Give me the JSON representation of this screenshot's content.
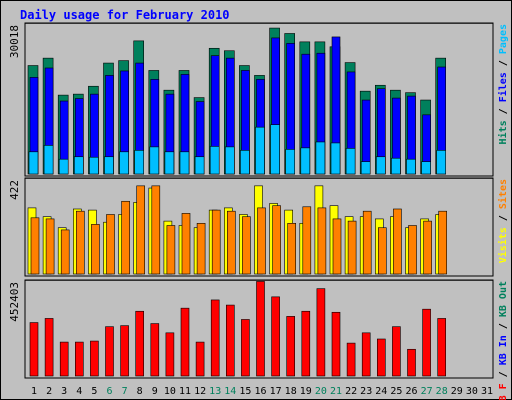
{
  "chart_data": {
    "type": "bar",
    "title": "Daily usage for February 2010",
    "days": [
      "1",
      "2",
      "3",
      "4",
      "5",
      "6",
      "7",
      "8",
      "9",
      "10",
      "11",
      "12",
      "13",
      "14",
      "15",
      "16",
      "17",
      "18",
      "19",
      "20",
      "21",
      "22",
      "23",
      "24",
      "25",
      "26",
      "27",
      "28",
      "29",
      "30",
      "31"
    ],
    "weekend_days": [
      "6",
      "7",
      "13",
      "14",
      "20",
      "21",
      "27",
      "28"
    ],
    "panels": [
      {
        "id": "top",
        "max_label": "30018",
        "ylim": [
          0,
          30018
        ],
        "right_label": [
          {
            "text": "Hits",
            "color": "#00805c"
          },
          {
            "text": " / ",
            "color": "#000000"
          },
          {
            "text": "Files",
            "color": "#0000ff"
          },
          {
            "text": " / ",
            "color": "#000000"
          },
          {
            "text": "Pages",
            "color": "#00bfff"
          }
        ],
        "series": [
          {
            "name": "Hits",
            "color": "#00805c",
            "values": [
              22000,
              23500,
              16000,
              16200,
              17800,
              22500,
              23000,
              27000,
              21000,
              17000,
              21000,
              15500,
              25500,
              25000,
              22000,
              20000,
              29600,
              28500,
              26800,
              26800,
              25800,
              22600,
              16800,
              18000,
              17000,
              16500,
              15000,
              23500,
              null,
              null,
              null
            ]
          },
          {
            "name": "Files",
            "color": "#0000ff",
            "values": [
              19600,
              21500,
              14800,
              15300,
              16200,
              20000,
              20900,
              22500,
              19200,
              16200,
              20200,
              14700,
              24000,
              23500,
              21000,
              19200,
              27600,
              26500,
              24300,
              24500,
              27800,
              20700,
              15000,
              17300,
              15400,
              15800,
              12000,
              21700,
              null,
              null,
              null
            ]
          },
          {
            "name": "Pages",
            "color": "#00bfff",
            "values": [
              4500,
              5800,
              3000,
              3500,
              3400,
              3500,
              4500,
              4800,
              5500,
              4500,
              4500,
              3500,
              5600,
              5500,
              4800,
              9500,
              10000,
              5000,
              5300,
              6500,
              6300,
              5200,
              2500,
              3500,
              3200,
              3000,
              2500,
              4800,
              null,
              null,
              null
            ]
          }
        ]
      },
      {
        "id": "middle",
        "max_label": "422",
        "ylim": [
          0,
          422
        ],
        "right_label": [
          {
            "text": "Visits",
            "color": "#ffff00"
          },
          {
            "text": " / ",
            "color": "#000000"
          },
          {
            "text": "Sites",
            "color": "#ff8000"
          }
        ],
        "series": [
          {
            "name": "Visits",
            "color": "#ffff00",
            "values": [
              300,
              260,
              210,
              295,
              290,
              235,
              270,
              325,
              390,
              240,
              220,
              210,
              290,
              300,
              270,
              400,
              320,
              290,
              230,
              400,
              310,
              260,
              260,
              250,
              260,
              210,
              250,
              270,
              null,
              null,
              null
            ]
          },
          {
            "name": "Sites",
            "color": "#ff8000",
            "values": [
              255,
              250,
              200,
              285,
              225,
              270,
              330,
              400,
              400,
              220,
              275,
              230,
              290,
              285,
              260,
              300,
              310,
              230,
              305,
              300,
              250,
              240,
              285,
              210,
              295,
              220,
              240,
              285,
              null,
              null,
              null
            ]
          }
        ]
      },
      {
        "id": "bottom",
        "max_label": "452403",
        "ylim": [
          0,
          452403
        ],
        "right_label": [
          {
            "text": "KB F",
            "color": "#ff0000"
          },
          {
            "text": " / ",
            "color": "#000000"
          },
          {
            "text": "KB In",
            "color": "#0000ff"
          },
          {
            "text": " / ",
            "color": "#000000"
          },
          {
            "text": "KB Out",
            "color": "#00805c"
          }
        ],
        "series": [
          {
            "name": "KB F",
            "color": "#ff0000",
            "values": [
              260000,
              280000,
              165000,
              165000,
              170000,
              240000,
              245000,
              315000,
              255000,
              210000,
              330000,
              165000,
              370000,
              345000,
              275000,
              460000,
              385000,
              290000,
              315000,
              425000,
              310000,
              160000,
              210000,
              180000,
              240000,
              130000,
              325000,
              280000,
              null,
              null,
              null
            ]
          }
        ]
      }
    ]
  }
}
